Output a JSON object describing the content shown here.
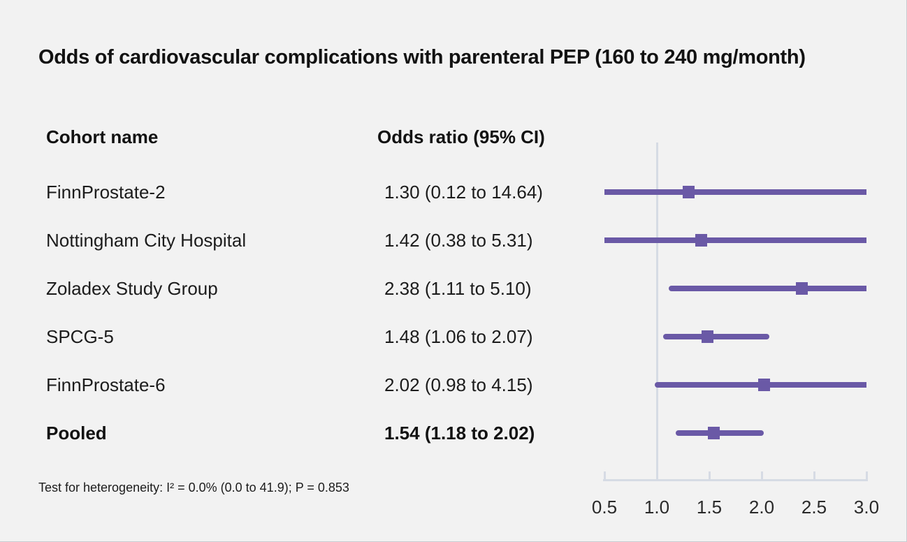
{
  "title": "Odds of cardiovascular complications with parenteral PEP (160 to 240 mg/month)",
  "columns": {
    "cohort": "Cohort name",
    "odds": "Odds ratio (95% CI)"
  },
  "footnote": "Test for heterogeneity: I² = 0.0% (0.0 to 41.9); P = 0.853",
  "colors": {
    "background": "#f2f2f2",
    "marker_purple": "#6a59a6",
    "reference_line_gray": "#d6dbe4",
    "axis_gray": "#d6dbe4",
    "text": "#161616"
  },
  "chart_data": {
    "type": "forest",
    "title": "Odds of cardiovascular complications with parenteral PEP (160 to 240 mg/month)",
    "xlim": [
      0.5,
      3.0
    ],
    "reference_value": 1.0,
    "ticks": [
      0.5,
      1.0,
      1.5,
      2.0,
      2.5,
      3.0
    ],
    "tick_labels": [
      "0.5",
      "1.0",
      "1.5",
      "2.0",
      "2.5",
      "3.0"
    ],
    "grid": false,
    "legend": null,
    "rows": [
      {
        "cohort": "FinnProstate-2",
        "label": "1.30 (0.12 to 14.64)",
        "estimate": 1.3,
        "ci_low": 0.12,
        "ci_high": 14.64,
        "bold": false
      },
      {
        "cohort": "Nottingham City Hospital",
        "label": "1.42 (0.38 to 5.31)",
        "estimate": 1.42,
        "ci_low": 0.38,
        "ci_high": 5.31,
        "bold": false
      },
      {
        "cohort": "Zoladex Study Group",
        "label": "2.38 (1.11 to 5.10)",
        "estimate": 2.38,
        "ci_low": 1.11,
        "ci_high": 5.1,
        "bold": false
      },
      {
        "cohort": "SPCG-5",
        "label": "1.48 (1.06 to 2.07)",
        "estimate": 1.48,
        "ci_low": 1.06,
        "ci_high": 2.07,
        "bold": false
      },
      {
        "cohort": "FinnProstate-6",
        "label": "2.02 (0.98 to 4.15)",
        "estimate": 2.02,
        "ci_low": 0.98,
        "ci_high": 4.15,
        "bold": false
      },
      {
        "cohort": "Pooled",
        "label": "1.54 (1.18 to 2.02)",
        "estimate": 1.54,
        "ci_low": 1.18,
        "ci_high": 2.02,
        "bold": true
      }
    ]
  }
}
